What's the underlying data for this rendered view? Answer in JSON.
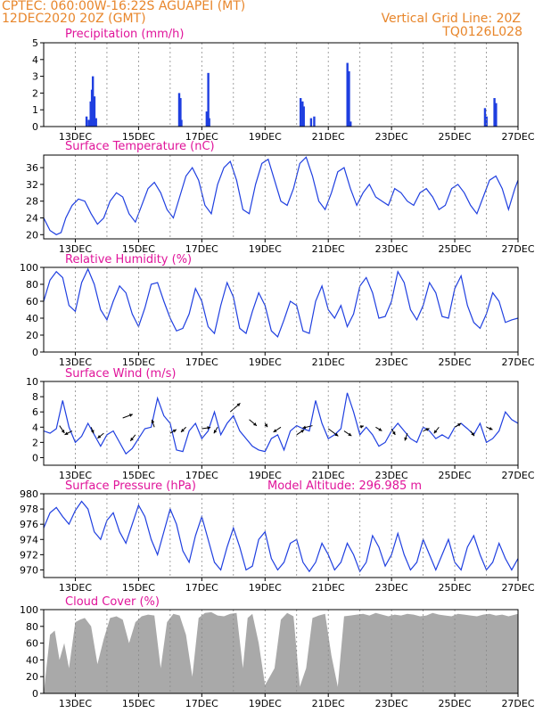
{
  "header": {
    "line1_left": "CPTEC:   060:00W-16:22S   AGUAPEI (MT)",
    "line2_left": "12DEC2020 20Z (GMT)",
    "line2_right": "Vertical Grid Line: 20Z",
    "line3_right": "TQ0126L028"
  },
  "colors": {
    "header": "#e8862b",
    "title": "#e0149a",
    "series": "#1f3fe0",
    "bars": "#1f3fe0",
    "cloud": "#a9a9a9",
    "arrow": "#000000"
  },
  "x_axis": {
    "labels": [
      "13DEC",
      "15DEC",
      "17DEC",
      "19DEC",
      "21DEC",
      "23DEC",
      "25DEC",
      "27DEC"
    ],
    "label_days": [
      1,
      3,
      5,
      7,
      9,
      11,
      13,
      15
    ],
    "vertical_grid_days": [
      0,
      1,
      2,
      3,
      4,
      5,
      6,
      7,
      8,
      9,
      10,
      11,
      12,
      13,
      14,
      15
    ],
    "units": "days since 12DEC2020 20Z",
    "span": [
      0,
      15
    ]
  },
  "chart_data": [
    {
      "type": "bar",
      "title": "Precipitation (mm/h)",
      "ylim": [
        0,
        5
      ],
      "yticks": [
        0,
        1,
        2,
        3,
        4,
        5
      ],
      "x": [
        1.35,
        1.42,
        1.48,
        1.52,
        1.55,
        1.6,
        1.65,
        4.28,
        4.32,
        4.35,
        5.15,
        5.2,
        5.23,
        8.12,
        8.18,
        8.22,
        8.45,
        8.55,
        9.6,
        9.65,
        9.7,
        13.95,
        14.0,
        14.25,
        14.3
      ],
      "values": [
        0.6,
        0.4,
        1.5,
        2.2,
        3.0,
        1.8,
        0.5,
        2.0,
        1.7,
        0.4,
        0.9,
        3.2,
        0.5,
        1.7,
        1.5,
        1.2,
        0.5,
        0.6,
        3.8,
        3.3,
        0.3,
        1.1,
        0.6,
        1.7,
        1.4
      ]
    },
    {
      "type": "line",
      "title": "Surface Temperature (nC)",
      "ylim": [
        19,
        39
      ],
      "yticks": [
        20,
        24,
        28,
        32,
        36
      ],
      "x": [
        0,
        0.2,
        0.4,
        0.55,
        0.7,
        0.9,
        1.1,
        1.3,
        1.5,
        1.7,
        1.9,
        2.1,
        2.3,
        2.5,
        2.7,
        2.9,
        3.1,
        3.3,
        3.5,
        3.7,
        3.9,
        4.1,
        4.3,
        4.5,
        4.7,
        4.9,
        5.1,
        5.3,
        5.5,
        5.7,
        5.9,
        6.1,
        6.3,
        6.5,
        6.7,
        6.9,
        7.1,
        7.3,
        7.5,
        7.7,
        7.9,
        8.1,
        8.3,
        8.5,
        8.7,
        8.9,
        9.1,
        9.3,
        9.5,
        9.7,
        9.9,
        10.1,
        10.3,
        10.5,
        10.7,
        10.9,
        11.1,
        11.3,
        11.5,
        11.7,
        11.9,
        12.1,
        12.3,
        12.5,
        12.7,
        12.9,
        13.1,
        13.3,
        13.5,
        13.7,
        13.9,
        14.1,
        14.3,
        14.5,
        14.7,
        14.9,
        15
      ],
      "values": [
        24,
        21,
        20,
        20.5,
        24,
        27,
        28.5,
        28,
        25,
        22.5,
        24,
        28,
        30,
        29,
        25,
        23,
        27,
        31,
        32.5,
        30,
        26,
        24,
        29,
        34,
        36,
        33,
        27,
        25,
        32,
        36,
        37.5,
        33,
        26,
        25,
        32,
        37,
        38,
        33,
        28,
        27,
        31,
        37,
        38.5,
        34,
        28,
        26,
        30,
        35,
        36,
        31,
        27,
        30,
        32,
        29,
        28,
        27,
        31,
        30,
        28,
        27,
        30,
        31,
        29,
        26,
        27,
        31,
        32,
        30,
        27,
        25,
        29,
        33,
        34,
        31,
        26,
        31,
        33
      ]
    },
    {
      "type": "line",
      "title": "Relative Humidity (%)",
      "ylim": [
        0,
        100
      ],
      "yticks": [
        0,
        20,
        40,
        60,
        80,
        100
      ],
      "x": [
        0,
        0.2,
        0.4,
        0.6,
        0.8,
        1.0,
        1.2,
        1.4,
        1.6,
        1.8,
        2.0,
        2.2,
        2.4,
        2.6,
        2.8,
        3.0,
        3.2,
        3.4,
        3.6,
        3.8,
        4.0,
        4.2,
        4.4,
        4.6,
        4.8,
        5.0,
        5.2,
        5.4,
        5.6,
        5.8,
        6.0,
        6.2,
        6.4,
        6.6,
        6.8,
        7.0,
        7.2,
        7.4,
        7.6,
        7.8,
        8.0,
        8.2,
        8.4,
        8.6,
        8.8,
        9.0,
        9.2,
        9.4,
        9.6,
        9.8,
        10.0,
        10.2,
        10.4,
        10.6,
        10.8,
        11.0,
        11.2,
        11.4,
        11.6,
        11.8,
        12.0,
        12.2,
        12.4,
        12.6,
        12.8,
        13.0,
        13.2,
        13.4,
        13.6,
        13.8,
        14.0,
        14.2,
        14.4,
        14.6,
        14.8,
        15
      ],
      "values": [
        60,
        85,
        95,
        88,
        55,
        48,
        82,
        98,
        80,
        50,
        38,
        60,
        78,
        70,
        45,
        30,
        52,
        80,
        82,
        60,
        40,
        25,
        28,
        45,
        75,
        60,
        30,
        22,
        55,
        82,
        65,
        28,
        22,
        48,
        70,
        55,
        25,
        18,
        38,
        60,
        55,
        25,
        22,
        60,
        78,
        50,
        40,
        55,
        30,
        45,
        78,
        88,
        70,
        40,
        42,
        60,
        95,
        82,
        50,
        38,
        55,
        82,
        70,
        42,
        40,
        75,
        90,
        55,
        35,
        28,
        45,
        70,
        60,
        35,
        38,
        40
      ]
    },
    {
      "type": "line",
      "title": "Surface Wind (m/s)",
      "ylim": [
        -1,
        10
      ],
      "yticks": [
        0,
        2,
        4,
        6,
        8,
        10
      ],
      "x": [
        0,
        0.2,
        0.4,
        0.6,
        0.8,
        1.0,
        1.2,
        1.4,
        1.6,
        1.8,
        2.0,
        2.2,
        2.4,
        2.6,
        2.8,
        3.0,
        3.2,
        3.4,
        3.6,
        3.8,
        4.0,
        4.2,
        4.4,
        4.6,
        4.8,
        5.0,
        5.2,
        5.4,
        5.6,
        5.8,
        6.0,
        6.2,
        6.4,
        6.6,
        6.8,
        7.0,
        7.2,
        7.4,
        7.6,
        7.8,
        8.0,
        8.2,
        8.4,
        8.6,
        8.8,
        9.0,
        9.2,
        9.4,
        9.6,
        9.8,
        10.0,
        10.2,
        10.4,
        10.6,
        10.8,
        11.0,
        11.2,
        11.4,
        11.6,
        11.8,
        12.0,
        12.2,
        12.4,
        12.6,
        12.8,
        13.0,
        13.2,
        13.4,
        13.6,
        13.8,
        14.0,
        14.2,
        14.4,
        14.6,
        14.8,
        15
      ],
      "values": [
        3.5,
        3.2,
        3.8,
        7.5,
        4.0,
        2.0,
        2.8,
        4.5,
        3.0,
        1.5,
        3.0,
        3.5,
        2.0,
        0.5,
        1.2,
        2.5,
        3.8,
        4.0,
        7.8,
        5.5,
        4.5,
        1.0,
        0.8,
        3.5,
        4.5,
        2.5,
        3.5,
        6.0,
        3.0,
        4.5,
        5.5,
        3.5,
        2.5,
        1.5,
        1.0,
        0.8,
        2.5,
        3.0,
        1.0,
        3.5,
        4.2,
        3.8,
        3.5,
        7.5,
        4.5,
        2.5,
        3.0,
        3.8,
        8.5,
        6.0,
        3.0,
        4.0,
        3.0,
        1.5,
        2.0,
        3.5,
        4.5,
        3.5,
        2.5,
        2.0,
        4.0,
        3.5,
        2.5,
        3.0,
        2.5,
        4.0,
        4.5,
        3.8,
        3.0,
        4.5,
        2.0,
        2.5,
        3.5,
        6.0,
        5.0,
        4.5
      ],
      "arrows": {
        "x": [
          0.5,
          0.9,
          1.5,
          1.9,
          2.5,
          2.9,
          3.5,
          4.0,
          4.5,
          5.0,
          5.5,
          5.9,
          6.5,
          7.0,
          7.5,
          8.0,
          8.5,
          9.0,
          9.5,
          10.0,
          10.5,
          11.0,
          11.5,
          12.0,
          12.5,
          13.0,
          13.5,
          14.0
        ],
        "y": [
          4.2,
          3.5,
          4.0,
          3.2,
          5.2,
          3.0,
          4.0,
          3.2,
          4.0,
          3.8,
          4.0,
          6.0,
          5.0,
          4.5,
          4.0,
          3.0,
          4.2,
          3.8,
          3.5,
          4.0,
          4.0,
          3.8,
          3.2,
          3.5,
          4.0,
          4.0,
          3.5,
          4.0
        ],
        "u": [
          0.4,
          -0.6,
          0.2,
          -0.5,
          0.8,
          -0.4,
          -0.2,
          0.5,
          -0.4,
          0.7,
          -0.3,
          0.8,
          0.6,
          0.2,
          -0.6,
          0.6,
          -0.8,
          0.8,
          0.6,
          0.3,
          0.5,
          0.3,
          -0.2,
          0.5,
          -0.4,
          0.5,
          0.3,
          0.5
        ],
        "v": [
          -0.6,
          -0.3,
          -0.5,
          -0.4,
          0.3,
          -0.5,
          0.6,
          0.3,
          -0.4,
          0.1,
          -0.5,
          0.7,
          -0.5,
          -0.3,
          -0.4,
          0.4,
          -0.2,
          -0.6,
          -0.4,
          0.1,
          -0.3,
          -0.5,
          -0.6,
          0.2,
          -0.5,
          0.3,
          -0.4,
          -0.2
        ]
      }
    },
    {
      "type": "line",
      "title": "Surface Pressure (hPa)",
      "annotation": "Model Altitude: 296.985 m",
      "ylim": [
        969,
        980
      ],
      "yticks": [
        970,
        972,
        974,
        976,
        978,
        980
      ],
      "x": [
        0,
        0.2,
        0.4,
        0.6,
        0.8,
        1.0,
        1.2,
        1.4,
        1.6,
        1.8,
        2.0,
        2.2,
        2.4,
        2.6,
        2.8,
        3.0,
        3.2,
        3.4,
        3.6,
        3.8,
        4.0,
        4.2,
        4.4,
        4.6,
        4.8,
        5.0,
        5.2,
        5.4,
        5.6,
        5.8,
        6.0,
        6.2,
        6.4,
        6.6,
        6.8,
        7.0,
        7.2,
        7.4,
        7.6,
        7.8,
        8.0,
        8.2,
        8.4,
        8.6,
        8.8,
        9.0,
        9.2,
        9.4,
        9.6,
        9.8,
        10.0,
        10.2,
        10.4,
        10.6,
        10.8,
        11.0,
        11.2,
        11.4,
        11.6,
        11.8,
        12.0,
        12.2,
        12.4,
        12.6,
        12.8,
        13.0,
        13.2,
        13.4,
        13.6,
        13.8,
        14.0,
        14.2,
        14.4,
        14.6,
        14.8,
        15
      ],
      "values": [
        975.5,
        977.5,
        978.2,
        977,
        976,
        977.8,
        979,
        978,
        975,
        974,
        976.5,
        977.5,
        975,
        973.5,
        976,
        978.5,
        977,
        974,
        972,
        975,
        978,
        976,
        972.5,
        971,
        974.5,
        977,
        974,
        971,
        970,
        973,
        975.5,
        973,
        970,
        970.5,
        974,
        975,
        971.5,
        970,
        971,
        973.5,
        974,
        971,
        969.8,
        971,
        973.5,
        972,
        970,
        971,
        973.5,
        972,
        969.8,
        971,
        974.5,
        973,
        970.5,
        972,
        974.8,
        972,
        970,
        971,
        974,
        972,
        970,
        972,
        974,
        971,
        970,
        973,
        974.5,
        972,
        970,
        971,
        973.5,
        971.5,
        970,
        971.5
      ]
    },
    {
      "type": "area",
      "title": "Cloud Cover (%)",
      "ylim": [
        0,
        100
      ],
      "yticks": [
        0,
        20,
        40,
        60,
        80,
        100
      ],
      "x": [
        0,
        0.2,
        0.35,
        0.5,
        0.65,
        0.8,
        1.0,
        1.15,
        1.3,
        1.5,
        1.7,
        1.9,
        2.1,
        2.3,
        2.5,
        2.7,
        2.9,
        3.1,
        3.3,
        3.5,
        3.7,
        3.9,
        4.1,
        4.3,
        4.5,
        4.7,
        4.9,
        5.1,
        5.3,
        5.5,
        5.7,
        5.9,
        6.1,
        6.3,
        6.45,
        6.6,
        6.8,
        7.0,
        7.15,
        7.3,
        7.5,
        7.7,
        7.9,
        8.1,
        8.3,
        8.5,
        8.7,
        8.9,
        9.1,
        9.3,
        9.5,
        9.7,
        9.9,
        10.1,
        10.3,
        10.5,
        10.7,
        10.9,
        11.1,
        11.3,
        11.5,
        11.7,
        11.9,
        12.1,
        12.3,
        12.5,
        12.7,
        12.9,
        13.1,
        13.3,
        13.5,
        13.7,
        13.9,
        14.1,
        14.3,
        14.5,
        14.7,
        15
      ],
      "values": [
        0,
        70,
        75,
        40,
        60,
        30,
        85,
        88,
        90,
        80,
        35,
        65,
        90,
        92,
        88,
        60,
        85,
        92,
        94,
        93,
        30,
        85,
        95,
        93,
        70,
        20,
        90,
        96,
        97,
        93,
        92,
        95,
        96,
        30,
        90,
        95,
        60,
        10,
        20,
        30,
        88,
        96,
        92,
        8,
        30,
        90,
        93,
        95,
        45,
        8,
        92,
        93,
        94,
        95,
        93,
        96,
        94,
        92,
        94,
        93,
        95,
        94,
        92,
        93,
        96,
        94,
        93,
        92,
        95,
        94,
        93,
        92,
        94,
        95,
        93,
        94,
        92,
        95
      ]
    }
  ]
}
